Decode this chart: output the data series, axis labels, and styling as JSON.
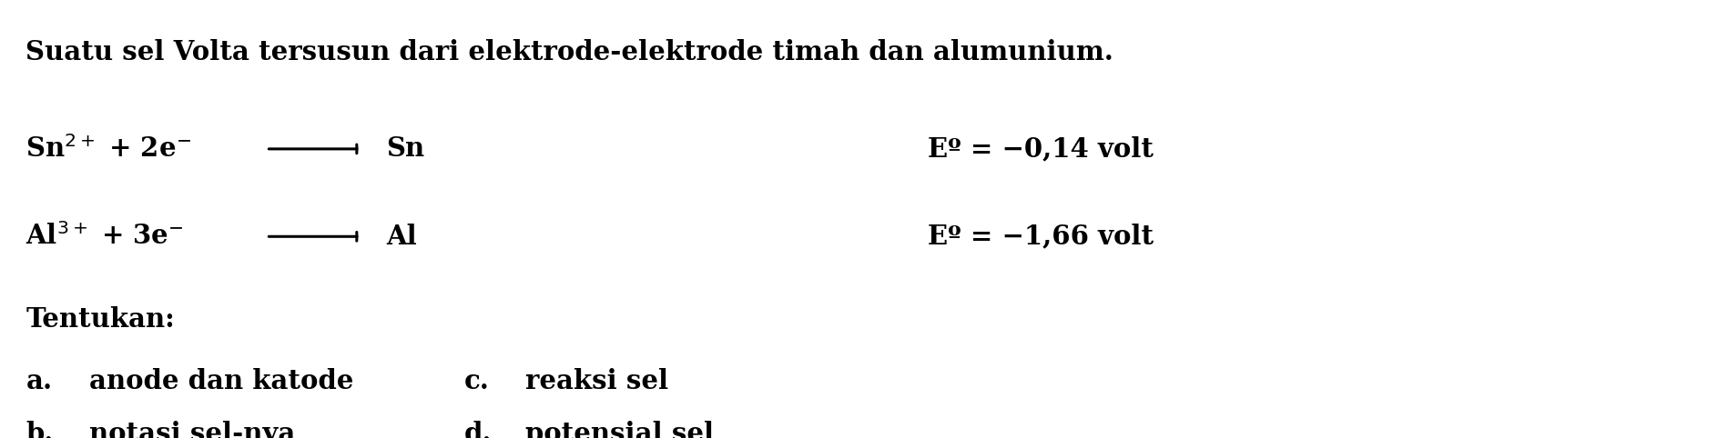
{
  "background_color": "#ffffff",
  "figsize": [
    18.87,
    4.82
  ],
  "dpi": 100,
  "title": "Suatu sel Volta tersusun dari elektrode-elektrode timah dan alumunium.",
  "reaction1": "Sn$^{2+}$ + 2e$^{-}$ ⟶   Sn",
  "reaction2": "Al$^{3+}$ + 3e$^{-}$ ⟶   Al",
  "eo1": "Eº = −0,14 volt",
  "eo2": "Eº = −1,66 volt",
  "tentukan": "Tentukan:",
  "item_a_label": "a.",
  "item_a_text": "anode dan katode",
  "item_b_label": "b.",
  "item_b_text": "notasi sel-nya",
  "item_c_label": "c.",
  "item_c_text": "reaksi sel",
  "item_d_label": "d.",
  "item_d_text": "potensial sel",
  "fontsize": 21,
  "fontfamily": "DejaVu Serif",
  "fontweight": "bold"
}
